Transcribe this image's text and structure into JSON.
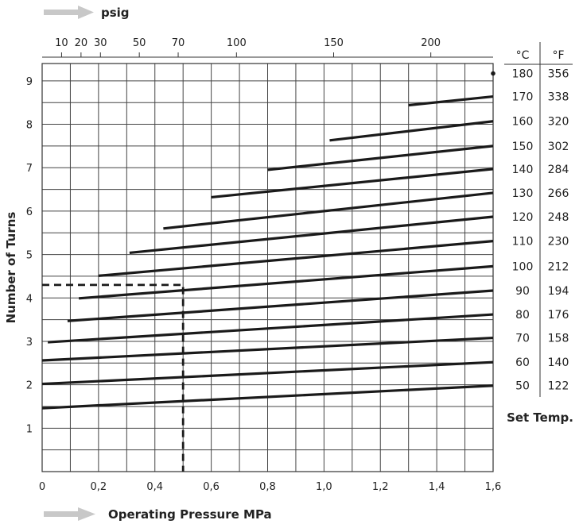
{
  "chart_data": {
    "type": "line",
    "top_axis_label": "psig",
    "top_ticks": [
      10,
      20,
      30,
      50,
      70,
      100,
      150,
      200
    ],
    "xlabel": "Operating Pressure MPa",
    "x_ticks": [
      "0",
      "0,2",
      "0,4",
      "0,6",
      "0,8",
      "1,0",
      "1,2",
      "1,4",
      "1,6"
    ],
    "xlim": [
      0,
      1.6
    ],
    "ylabel": "Number of Turns",
    "y_ticks": [
      1,
      2,
      3,
      4,
      5,
      6,
      7,
      8,
      9
    ],
    "ylim": [
      0,
      9.4
    ],
    "grid": true,
    "temp_headers": [
      "°C",
      "°F"
    ],
    "temp_label": "Set Temp.",
    "series": [
      {
        "c": "50",
        "f": "122",
        "x": [
          0.0,
          1.6
        ],
        "y": [
          1.46,
          1.98
        ]
      },
      {
        "c": "60",
        "f": "140",
        "x": [
          0.0,
          1.6
        ],
        "y": [
          2.02,
          2.52
        ]
      },
      {
        "c": "70",
        "f": "158",
        "x": [
          0.0,
          1.6
        ],
        "y": [
          2.56,
          3.08
        ]
      },
      {
        "c": "80",
        "f": "176",
        "x": [
          0.02,
          1.6
        ],
        "y": [
          2.98,
          3.62
        ]
      },
      {
        "c": "90",
        "f": "194",
        "x": [
          0.09,
          1.6
        ],
        "y": [
          3.47,
          4.17
        ]
      },
      {
        "c": "100",
        "f": "212",
        "x": [
          0.13,
          1.6
        ],
        "y": [
          3.99,
          4.73
        ]
      },
      {
        "c": "110",
        "f": "230",
        "x": [
          0.2,
          1.6
        ],
        "y": [
          4.51,
          5.31
        ]
      },
      {
        "c": "120",
        "f": "248",
        "x": [
          0.31,
          1.6
        ],
        "y": [
          5.04,
          5.87
        ]
      },
      {
        "c": "130",
        "f": "266",
        "x": [
          0.43,
          1.6
        ],
        "y": [
          5.6,
          6.42
        ]
      },
      {
        "c": "140",
        "f": "284",
        "x": [
          0.6,
          1.6
        ],
        "y": [
          6.32,
          6.97
        ]
      },
      {
        "c": "150",
        "f": "302",
        "x": [
          0.8,
          1.6
        ],
        "y": [
          6.95,
          7.5
        ]
      },
      {
        "c": "160",
        "f": "320",
        "x": [
          1.02,
          1.6
        ],
        "y": [
          7.63,
          8.07
        ]
      },
      {
        "c": "170",
        "f": "338",
        "x": [
          1.3,
          1.6
        ],
        "y": [
          8.44,
          8.64
        ]
      },
      {
        "c": "180",
        "f": "356",
        "x": [
          1.6
        ],
        "y": [
          9.17
        ]
      }
    ],
    "example_point": {
      "x": 0.5,
      "y": 4.3
    }
  }
}
